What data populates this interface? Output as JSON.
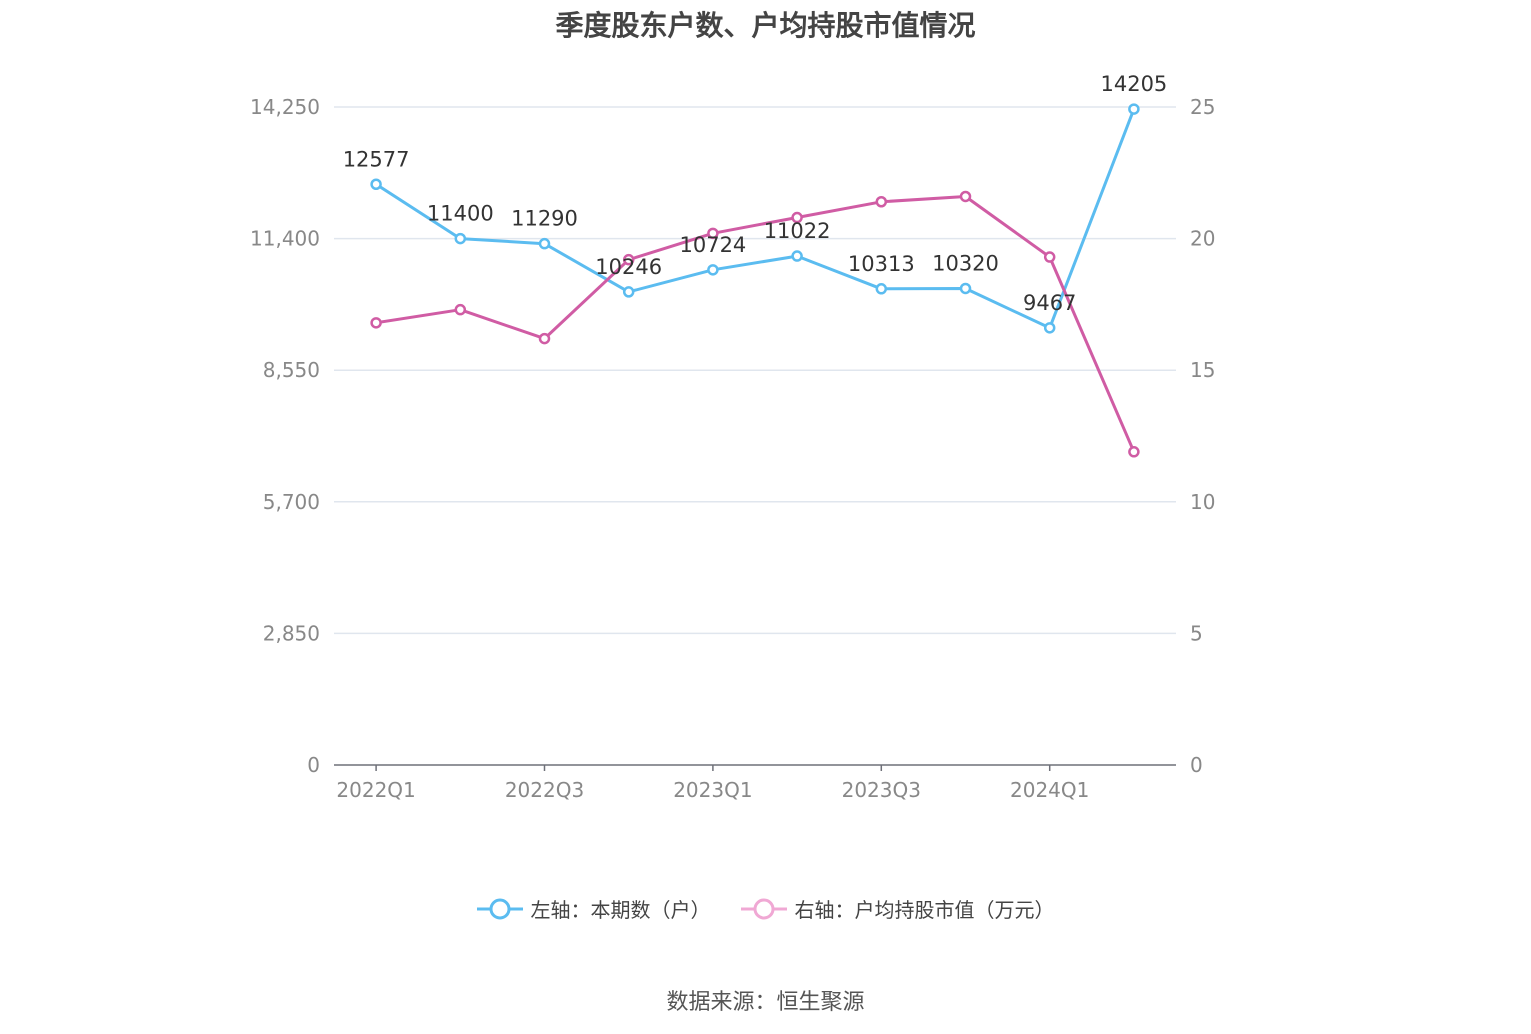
{
  "title": "季度股东户数、户均持股市值情况",
  "source_label": "数据来源：恒生聚源",
  "colors": {
    "left_series": "#5bbcf0",
    "right_series": "#d05ca4",
    "grid": "#e0e6ee",
    "axis_text": "#888888",
    "label_text": "#333333"
  },
  "chart_data": {
    "type": "line",
    "x": [
      "2022Q1",
      "2022Q2",
      "2022Q3",
      "2022Q4",
      "2023Q1",
      "2023Q2",
      "2023Q3",
      "2023Q4",
      "2024Q1",
      "2024Q2"
    ],
    "x_tick_labels": [
      "2022Q1",
      "",
      "2022Q3",
      "",
      "2023Q1",
      "",
      "2023Q3",
      "",
      "2024Q1",
      ""
    ],
    "y_left": {
      "ticks": [
        "0",
        "2,850",
        "5,700",
        "8,550",
        "11,400",
        "14,250"
      ],
      "ylim": [
        0,
        14250
      ]
    },
    "y_right": {
      "ticks": [
        "0",
        "5",
        "10",
        "15",
        "20",
        "25"
      ],
      "ylim": [
        0,
        25
      ]
    },
    "series": [
      {
        "name": "左轴：本期数（户）",
        "axis": "left",
        "values": [
          12577,
          11400,
          11290,
          10246,
          10724,
          11022,
          10313,
          10320,
          9467,
          14205
        ],
        "data_labels": [
          "12577",
          "11400",
          "11290",
          "10246",
          "10724",
          "11022",
          "10313",
          "10320",
          "9467",
          "14205"
        ]
      },
      {
        "name": "右轴：户均持股市值（万元）",
        "axis": "right",
        "values": [
          16.8,
          17.3,
          16.2,
          19.2,
          20.2,
          20.8,
          21.4,
          21.6,
          19.3,
          11.9
        ]
      }
    ],
    "grid": true,
    "legend_position": "bottom-center"
  }
}
